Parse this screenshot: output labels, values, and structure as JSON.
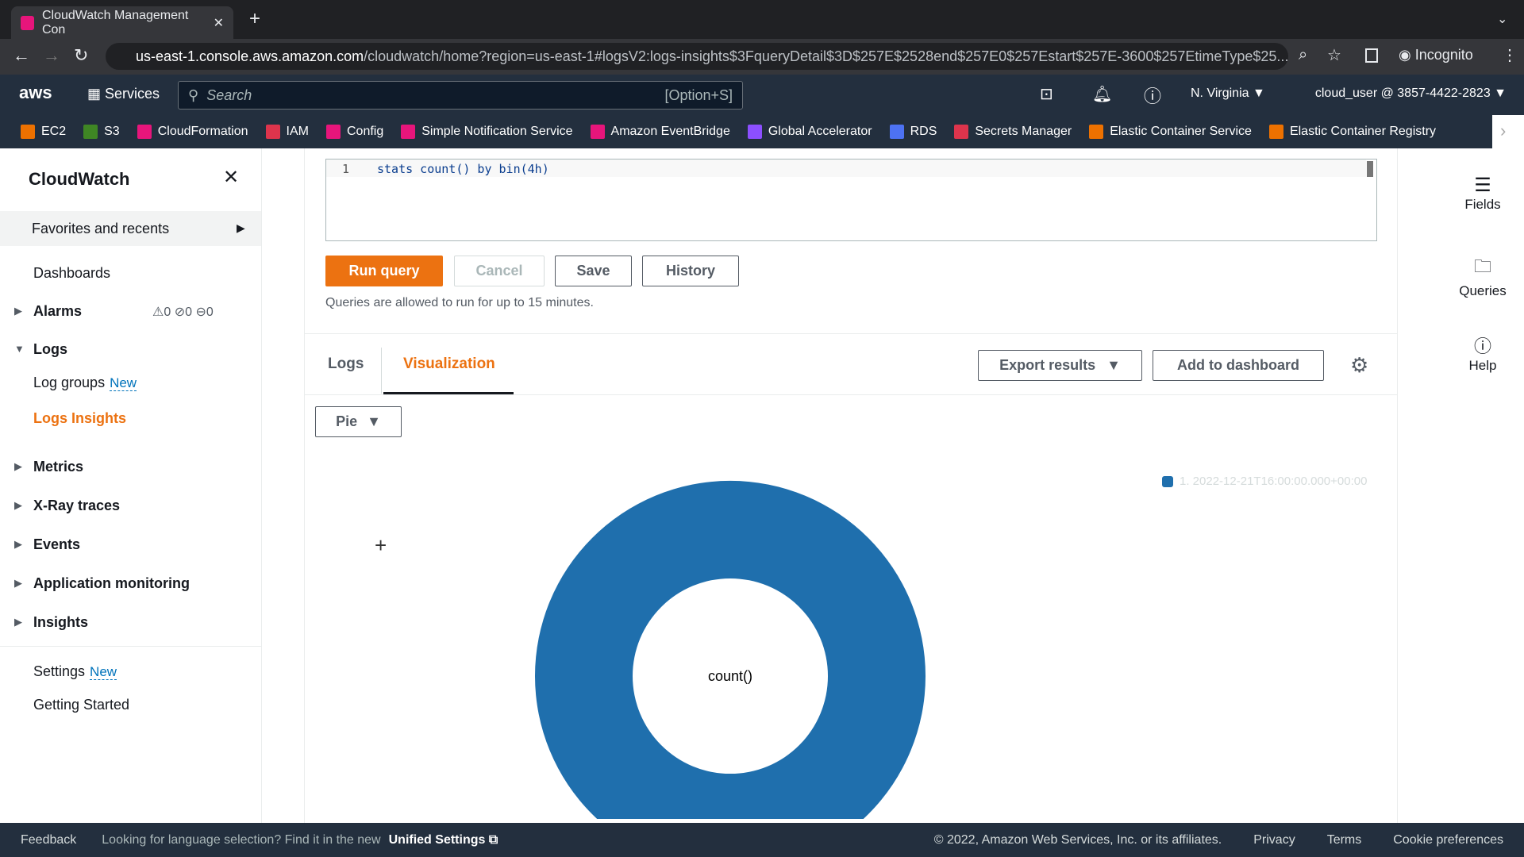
{
  "browser": {
    "tab_title": "CloudWatch Management Con",
    "url_host": "us-east-1.console.aws.amazon.com",
    "url_path": "/cloudwatch/home?region=us-east-1#logsV2:logs-insights$3FqueryDetail$3D$257E$2528end$257E0$257Estart$257E-3600$257EtimeType$25...",
    "profile": "Incognito"
  },
  "nav": {
    "logo": "aws",
    "services": "Services",
    "search_placeholder": "Search",
    "search_shortcut": "[Option+S]",
    "region": "N. Virginia ▼",
    "account": "cloud_user @ 3857-4422-2823 ▼"
  },
  "favorites": [
    {
      "label": "EC2",
      "color": "#ed7100"
    },
    {
      "label": "S3",
      "color": "#3f8624"
    },
    {
      "label": "CloudFormation",
      "color": "#e7157b"
    },
    {
      "label": "IAM",
      "color": "#dd344c"
    },
    {
      "label": "Config",
      "color": "#e7157b"
    },
    {
      "label": "Simple Notification Service",
      "color": "#e7157b"
    },
    {
      "label": "Amazon EventBridge",
      "color": "#e7157b"
    },
    {
      "label": "Global Accelerator",
      "color": "#8c4fff"
    },
    {
      "label": "RDS",
      "color": "#4d72f3"
    },
    {
      "label": "Secrets Manager",
      "color": "#dd344c"
    },
    {
      "label": "Elastic Container Service",
      "color": "#ed7100"
    },
    {
      "label": "Elastic Container Registry",
      "color": "#ed7100"
    }
  ],
  "sidebar": {
    "title": "CloudWatch",
    "favorites": "Favorites and recents",
    "dashboards": "Dashboards",
    "alarms": "Alarms",
    "alarm_counts": [
      "0",
      "0",
      "0"
    ],
    "logs": "Logs",
    "log_groups": "Log groups",
    "new": "New",
    "logs_insights": "Logs Insights",
    "metrics": "Metrics",
    "xray": "X-Ray traces",
    "events": "Events",
    "app_monitoring": "Application monitoring",
    "insights": "Insights",
    "settings": "Settings",
    "getting_started": "Getting Started"
  },
  "editor": {
    "line": "1",
    "query": "stats count() by bin(4h)"
  },
  "buttons": {
    "run": "Run query",
    "cancel": "Cancel",
    "save": "Save",
    "history": "History",
    "note": "Queries are allowed to run for up to 15 minutes."
  },
  "results": {
    "tab_logs": "Logs",
    "tab_viz": "Visualization",
    "export": "Export results",
    "add_dashboard": "Add to dashboard",
    "chart_type": "Pie"
  },
  "chart_data": {
    "type": "pie",
    "categories": [
      "1. 2022-12-21T16:00:00.000+00:00"
    ],
    "values": [
      1
    ],
    "center_label": "count()",
    "colors": [
      "#1f6fad"
    ],
    "legend_placement": "top-right"
  },
  "right_panel": {
    "fields": "Fields",
    "queries": "Queries",
    "help": "Help"
  },
  "footer": {
    "feedback": "Feedback",
    "lang": "Looking for language selection? Find it in the new",
    "unified": "Unified Settings",
    "copyright": "© 2022, Amazon Web Services, Inc. or its affiliates.",
    "privacy": "Privacy",
    "terms": "Terms",
    "cookies": "Cookie preferences"
  },
  "accent": "#ec7211"
}
